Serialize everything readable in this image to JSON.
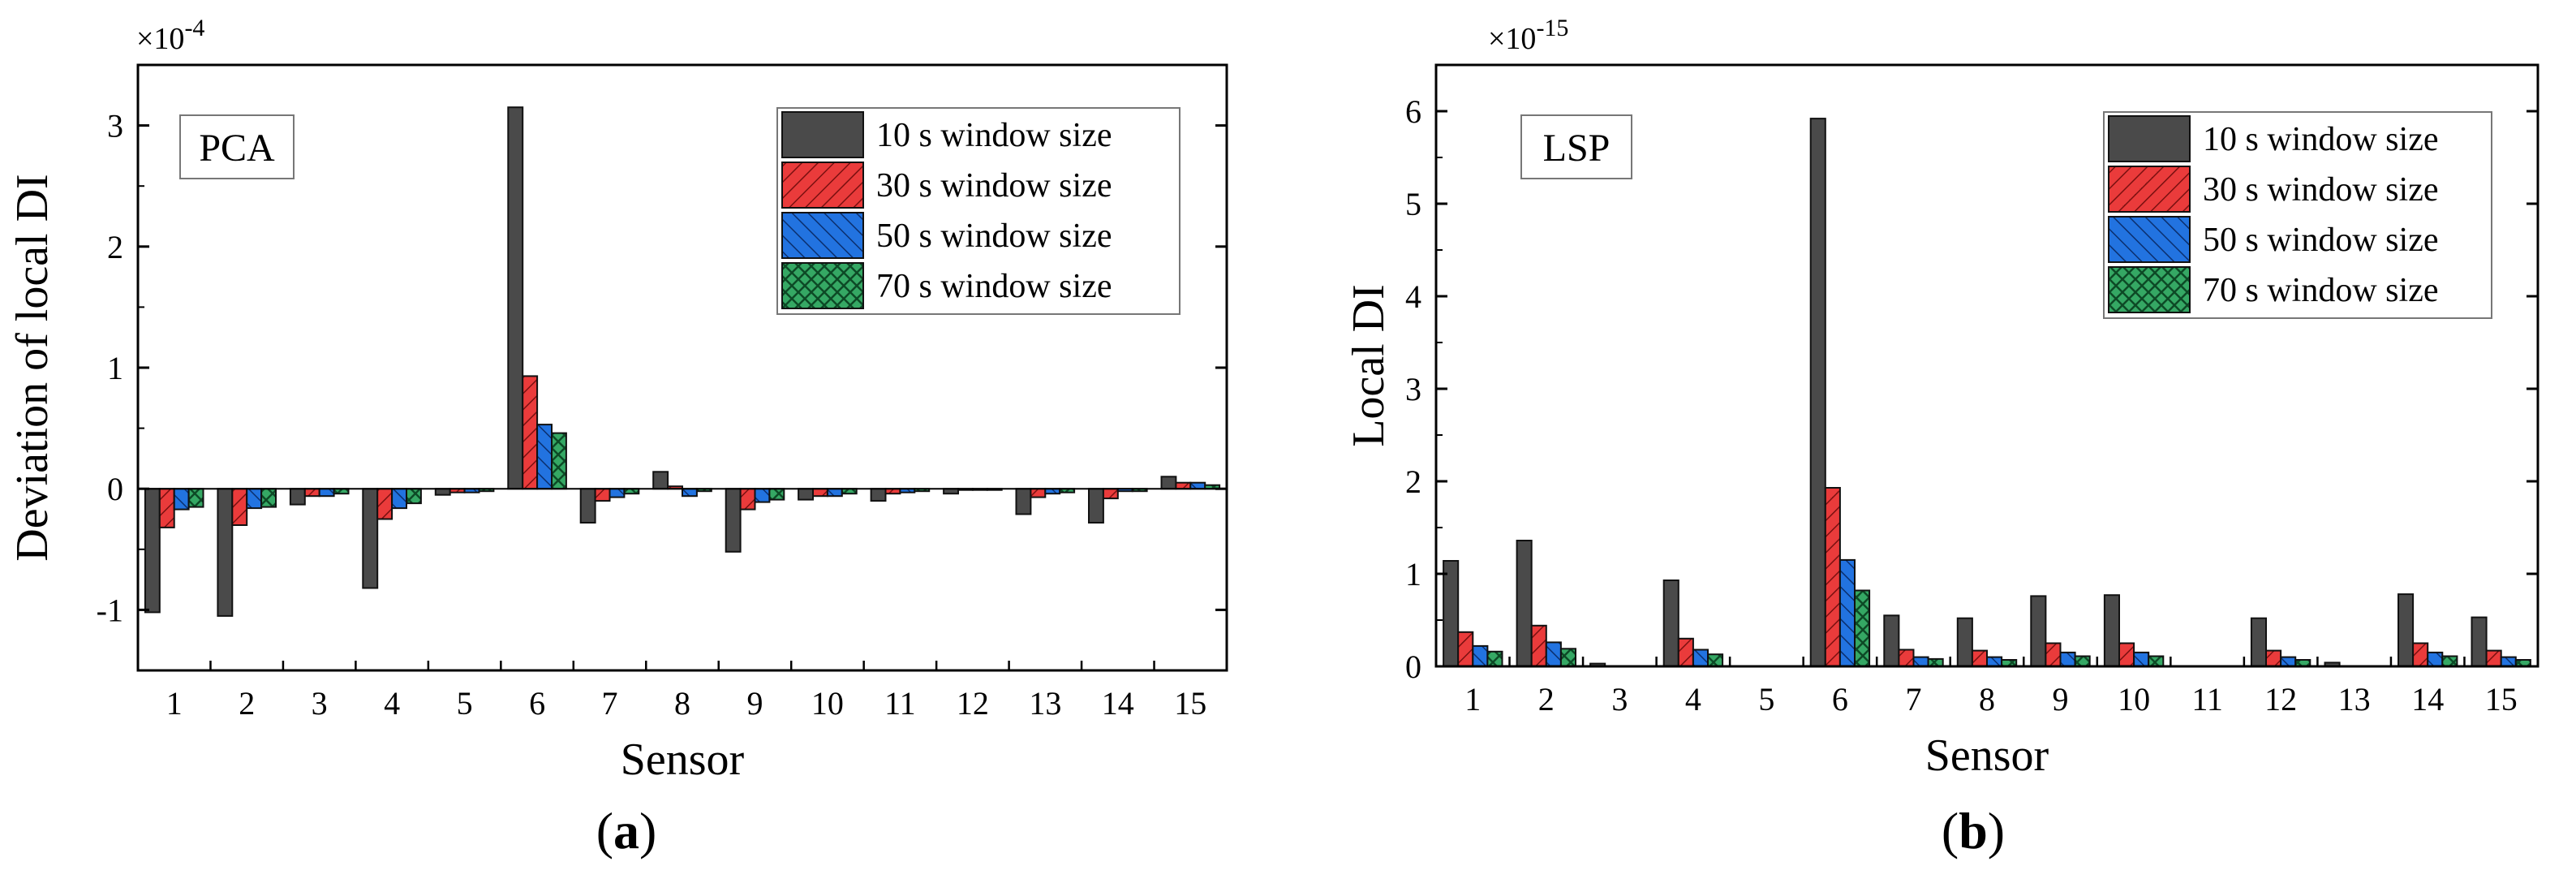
{
  "figure_captions": [
    "(a)",
    "(b)"
  ],
  "chart_data": [
    {
      "type": "bar",
      "panel_label": "a",
      "caption_letter": "a",
      "inset_label": "PCA",
      "title": "",
      "xlabel": "Sensor",
      "ylabel": "Deviation of local DI",
      "exponent": "×10",
      "exponent_power": "-4",
      "ylim": [
        -1.5,
        3.5
      ],
      "yticks": [
        -1,
        0,
        1,
        2,
        3
      ],
      "grid": false,
      "legend_position": "top-right",
      "categories": [
        "1",
        "2",
        "3",
        "4",
        "5",
        "6",
        "7",
        "8",
        "9",
        "10",
        "11",
        "12",
        "13",
        "14",
        "15"
      ],
      "series": [
        {
          "name": "10 s window size",
          "color": "#4a4a4a",
          "pattern": "none",
          "values": [
            -1.02,
            -1.05,
            -0.13,
            -0.82,
            -0.05,
            3.15,
            -0.28,
            0.14,
            -0.52,
            -0.09,
            -0.1,
            -0.04,
            -0.21,
            -0.28,
            0.1
          ]
        },
        {
          "name": "30 s window size",
          "color": "#e53935",
          "pattern": "hatch",
          "values": [
            -0.32,
            -0.3,
            -0.06,
            -0.25,
            -0.03,
            0.93,
            -0.1,
            0.02,
            -0.17,
            -0.06,
            -0.04,
            -0.01,
            -0.07,
            -0.08,
            0.05
          ]
        },
        {
          "name": "50 s window size",
          "color": "#1e6fd9",
          "pattern": "hatch",
          "values": [
            -0.17,
            -0.16,
            -0.06,
            -0.16,
            -0.03,
            0.53,
            -0.07,
            -0.06,
            -0.11,
            -0.06,
            -0.03,
            -0.01,
            -0.04,
            -0.02,
            0.05
          ]
        },
        {
          "name": "70 s window size",
          "color": "#2e9e5b",
          "pattern": "crosshatch",
          "values": [
            -0.15,
            -0.15,
            -0.04,
            -0.12,
            -0.02,
            0.46,
            -0.04,
            -0.02,
            -0.09,
            -0.04,
            -0.02,
            -0.01,
            -0.03,
            -0.02,
            0.03
          ]
        }
      ]
    },
    {
      "type": "bar",
      "panel_label": "b",
      "caption_letter": "b",
      "inset_label": "LSP",
      "title": "",
      "xlabel": "Sensor",
      "ylabel": "Local DI",
      "exponent": "×10",
      "exponent_power": "-15",
      "ylim": [
        0,
        6.5
      ],
      "yticks": [
        0,
        1,
        2,
        3,
        4,
        5,
        6
      ],
      "grid": false,
      "legend_position": "top-right",
      "categories": [
        "1",
        "2",
        "3",
        "4",
        "5",
        "6",
        "7",
        "8",
        "9",
        "10",
        "11",
        "12",
        "13",
        "14",
        "15"
      ],
      "series": [
        {
          "name": "10 s window size",
          "color": "#4a4a4a",
          "pattern": "none",
          "values": [
            1.14,
            1.36,
            0.03,
            0.93,
            0.0,
            5.92,
            0.55,
            0.52,
            0.76,
            0.77,
            0.0,
            0.52,
            0.04,
            0.78,
            0.53
          ]
        },
        {
          "name": "30 s window size",
          "color": "#e53935",
          "pattern": "hatch",
          "values": [
            0.37,
            0.44,
            0.0,
            0.3,
            0.0,
            1.93,
            0.18,
            0.17,
            0.25,
            0.25,
            0.0,
            0.17,
            0.0,
            0.25,
            0.17
          ]
        },
        {
          "name": "50 s window size",
          "color": "#1e6fd9",
          "pattern": "hatch",
          "values": [
            0.22,
            0.26,
            0.0,
            0.18,
            0.0,
            1.15,
            0.1,
            0.1,
            0.15,
            0.15,
            0.0,
            0.1,
            0.0,
            0.15,
            0.1
          ]
        },
        {
          "name": "70 s window size",
          "color": "#2e9e5b",
          "pattern": "crosshatch",
          "values": [
            0.16,
            0.19,
            0.0,
            0.13,
            0.0,
            0.82,
            0.08,
            0.07,
            0.11,
            0.11,
            0.0,
            0.07,
            0.0,
            0.11,
            0.07
          ]
        }
      ]
    }
  ]
}
